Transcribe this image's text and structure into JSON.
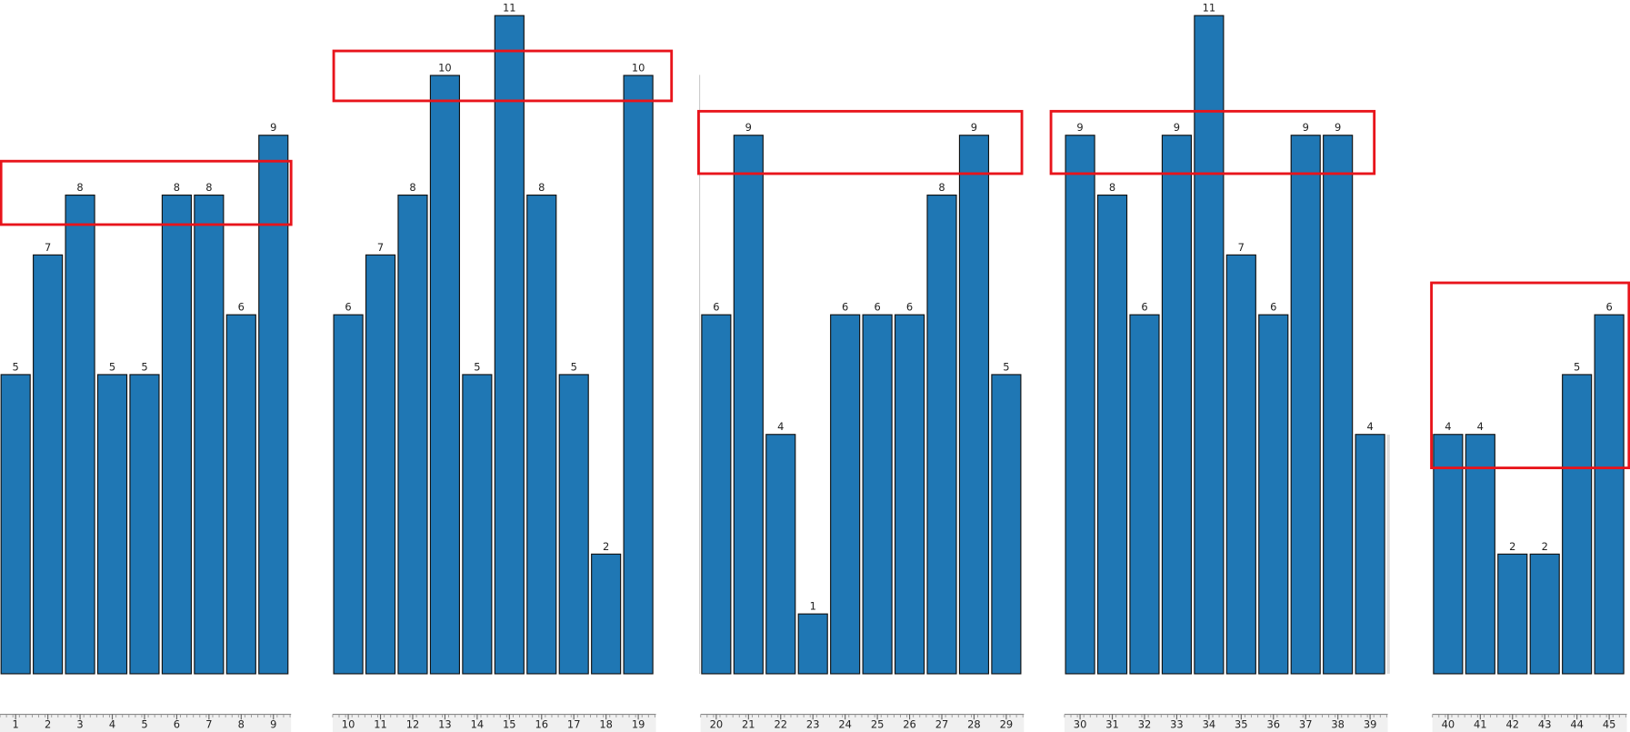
{
  "chart_data": {
    "type": "bar",
    "categories": [
      "1",
      "2",
      "3",
      "4",
      "5",
      "6",
      "7",
      "8",
      "9",
      "10",
      "11",
      "12",
      "13",
      "14",
      "15",
      "16",
      "17",
      "18",
      "19",
      "20",
      "21",
      "22",
      "23",
      "24",
      "25",
      "26",
      "27",
      "28",
      "29",
      "30",
      "31",
      "32",
      "33",
      "34",
      "35",
      "36",
      "37",
      "38",
      "39",
      "40",
      "41",
      "42",
      "43",
      "44",
      "45"
    ],
    "values": [
      5,
      7,
      8,
      5,
      5,
      8,
      8,
      6,
      9,
      6,
      7,
      8,
      10,
      5,
      11,
      8,
      5,
      2,
      10,
      6,
      9,
      4,
      1,
      6,
      6,
      6,
      8,
      9,
      5,
      9,
      8,
      6,
      9,
      11,
      7,
      6,
      9,
      9,
      4,
      4,
      4,
      2,
      2,
      5,
      6
    ],
    "color": "#1f77b4",
    "ylim": [
      0,
      11
    ]
  }
}
